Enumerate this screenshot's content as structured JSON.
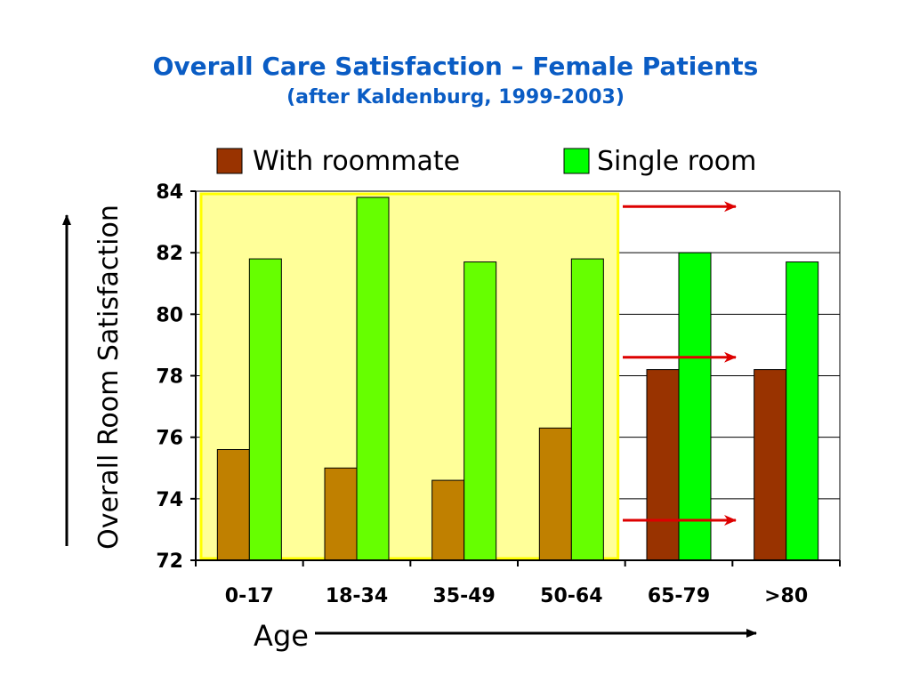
{
  "chart_data": {
    "type": "bar",
    "title": "Overall Care Satisfaction – Female Patients",
    "subtitle": "(after Kaldenburg, 1999-2003)",
    "xlabel": "Age",
    "ylabel": "Overall Room Satisfaction",
    "categories": [
      "0-17",
      "18-34",
      "35-49",
      "50-64",
      "65-79",
      ">80"
    ],
    "series": [
      {
        "name": "With roommate",
        "values": [
          75.6,
          75.0,
          74.6,
          76.3,
          78.2,
          78.2
        ],
        "color": "#993300",
        "highlight_color": "#c08000"
      },
      {
        "name": "Single room",
        "values": [
          81.8,
          83.8,
          81.7,
          81.8,
          82.0,
          81.7
        ],
        "color": "#00ff00",
        "highlight_color": "#66ff00"
      }
    ],
    "ylim": [
      72,
      84
    ],
    "yticks": [
      72,
      74,
      76,
      78,
      80,
      82,
      84
    ],
    "grid": true,
    "legend": "top",
    "highlighted_categories": [
      "0-17",
      "18-34",
      "35-49",
      "50-64"
    ],
    "highlight_fill": "#ffff99",
    "highlight_border": "#ffff00",
    "annotation_arrow_color": "#dd0000",
    "annotation_arrow_values": [
      83.5,
      78.6,
      73.3
    ]
  }
}
